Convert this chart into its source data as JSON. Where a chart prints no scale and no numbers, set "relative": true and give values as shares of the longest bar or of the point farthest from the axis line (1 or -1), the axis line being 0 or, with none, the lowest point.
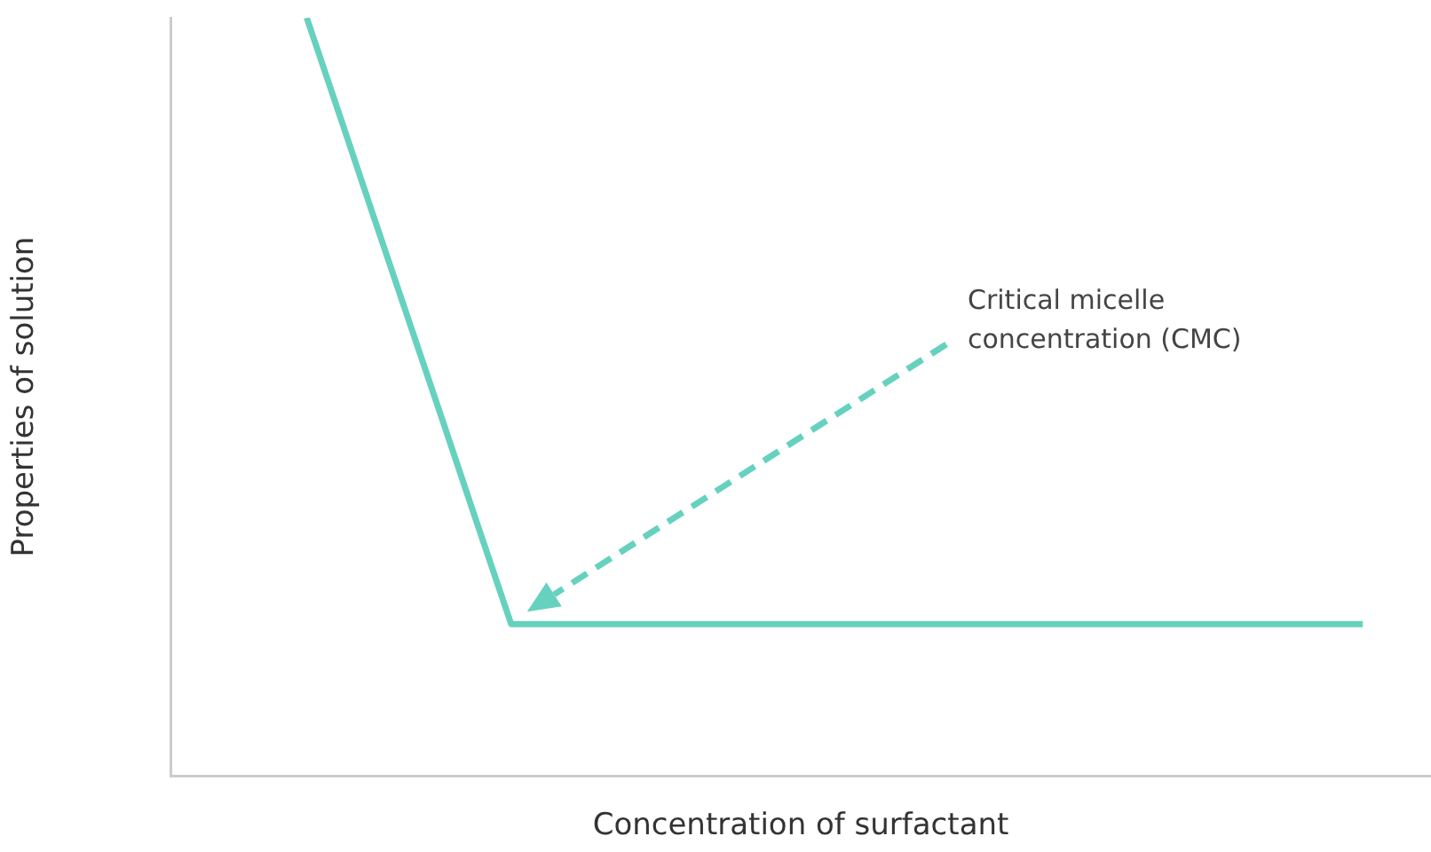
{
  "chart_data": {
    "type": "line",
    "xlabel": "Concentration of surfactant",
    "ylabel": "Properties of solution",
    "relative": true,
    "categories": [
      null,
      null,
      null,
      null,
      null,
      null,
      null,
      null,
      null,
      null,
      null,
      null,
      null,
      null,
      null,
      null,
      null,
      null,
      null,
      null,
      null,
      null,
      null,
      null,
      null,
      null,
      null,
      null,
      null,
      null,
      null,
      null,
      null,
      null,
      null,
      null,
      null,
      null
    ],
    "series": [
      {
        "color": "#66d1bf",
        "values": [
          null,
          null,
          null,
          null,
          1,
          0.867,
          0.733,
          0.6,
          0.467,
          0.333,
          0.2,
          0.2,
          0.2,
          0.2,
          0.2,
          0.2,
          0.2,
          0.2,
          0.2,
          0.2,
          0.2,
          0.2,
          0.2,
          0.2,
          0.2,
          0.2,
          0.2,
          0.2,
          0.2,
          0.2,
          0.2,
          0.2,
          0.2,
          0.2,
          0.2,
          0.2,
          null,
          null
        ]
      }
    ],
    "annotations": [
      "Critical micelle concentration (CMC)"
    ],
    "grid": false,
    "legend": false,
    "marker": "none",
    "line_style": "solid"
  }
}
